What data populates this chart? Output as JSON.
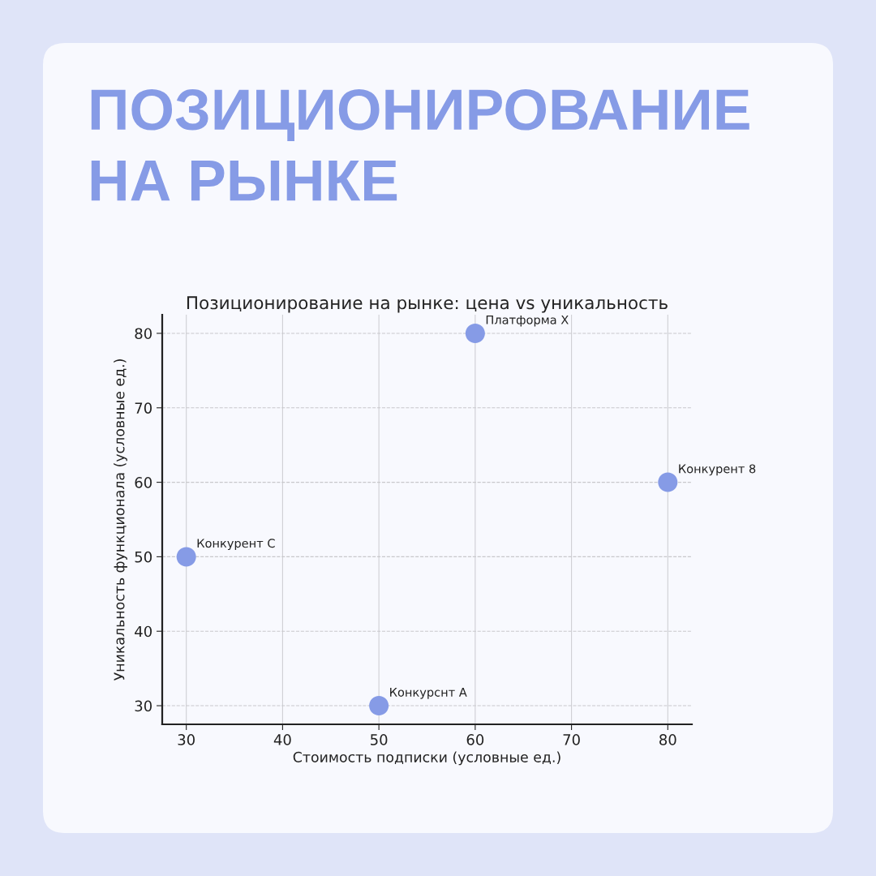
{
  "chart_data": {
    "type": "scatter",
    "title": "ПОЗИЦИОНИРОВАНИЕ\nНА РЫНКЕ",
    "subtitle": "Позиционирование на рынке: цена vs уникальность",
    "xlabel": "Стоимость подписки (условные ед.)",
    "ylabel": "Уникальность функционала (условные ед.)",
    "x": [
      60,
      80,
      30,
      50
    ],
    "series": [
      {
        "color": "#869be6",
        "values": [
          80,
          60,
          50,
          30
        ]
      }
    ],
    "annotations": [
      {
        "text": "Платформа X",
        "x": 60,
        "y": 80
      },
      {
        "text": "Конкурент 8",
        "x": 80,
        "y": 60
      },
      {
        "text": "Конкурент C",
        "x": 30,
        "y": 50
      },
      {
        "text": "Конкурснт А",
        "x": 50,
        "y": 30
      }
    ],
    "xlim": [
      27.5,
      82.5
    ],
    "ylim": [
      27.5,
      82.5
    ],
    "xticks": [
      30,
      40,
      50,
      60,
      70,
      80
    ],
    "yticks": [
      30,
      40,
      50,
      60,
      70,
      80
    ],
    "grid": true,
    "marker": "circle"
  }
}
